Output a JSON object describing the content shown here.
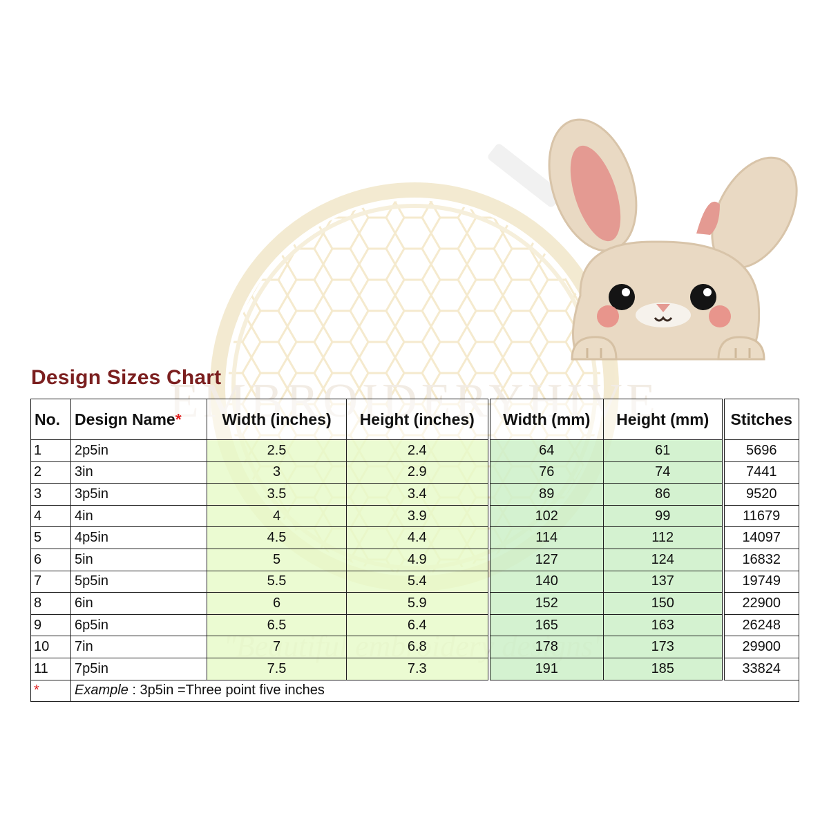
{
  "title": "Design Sizes Chart",
  "watermark": {
    "brand": "EMBROIDERYHIVE",
    "tagline": "\"Beautiful embroidery designs\""
  },
  "illustration": "bunny-embroidery-design",
  "headers": {
    "no": "No.",
    "design_name": "Design Name",
    "asterisk": "*",
    "width_in": "Width (inches)",
    "height_in": "Height (inches)",
    "width_mm": "Width (mm)",
    "height_mm": "Height (mm)",
    "stitches": "Stitches"
  },
  "rows": [
    {
      "no": "1",
      "name": "2p5in",
      "w_in": "2.5",
      "h_in": "2.4",
      "w_mm": "64",
      "h_mm": "61",
      "stitches": "5696"
    },
    {
      "no": "2",
      "name": "3in",
      "w_in": "3",
      "h_in": "2.9",
      "w_mm": "76",
      "h_mm": "74",
      "stitches": "7441"
    },
    {
      "no": "3",
      "name": "3p5in",
      "w_in": "3.5",
      "h_in": "3.4",
      "w_mm": "89",
      "h_mm": "86",
      "stitches": "9520"
    },
    {
      "no": "4",
      "name": "4in",
      "w_in": "4",
      "h_in": "3.9",
      "w_mm": "102",
      "h_mm": "99",
      "stitches": "11679"
    },
    {
      "no": "5",
      "name": "4p5in",
      "w_in": "4.5",
      "h_in": "4.4",
      "w_mm": "114",
      "h_mm": "112",
      "stitches": "14097"
    },
    {
      "no": "6",
      "name": "5in",
      "w_in": "5",
      "h_in": "4.9",
      "w_mm": "127",
      "h_mm": "124",
      "stitches": "16832"
    },
    {
      "no": "7",
      "name": "5p5in",
      "w_in": "5.5",
      "h_in": "5.4",
      "w_mm": "140",
      "h_mm": "137",
      "stitches": "19749"
    },
    {
      "no": "8",
      "name": "6in",
      "w_in": "6",
      "h_in": "5.9",
      "w_mm": "152",
      "h_mm": "150",
      "stitches": "22900"
    },
    {
      "no": "9",
      "name": "6p5in",
      "w_in": "6.5",
      "h_in": "6.4",
      "w_mm": "165",
      "h_mm": "163",
      "stitches": "26248"
    },
    {
      "no": "10",
      "name": "7in",
      "w_in": "7",
      "h_in": "6.8",
      "w_mm": "178",
      "h_mm": "173",
      "stitches": "29900"
    },
    {
      "no": "11",
      "name": "7p5in",
      "w_in": "7.5",
      "h_in": "7.3",
      "w_mm": "191",
      "h_mm": "185",
      "stitches": "33824"
    }
  ],
  "note": {
    "marker": "*",
    "label": "Example",
    "text": " : 3p5in =Three point five inches"
  }
}
